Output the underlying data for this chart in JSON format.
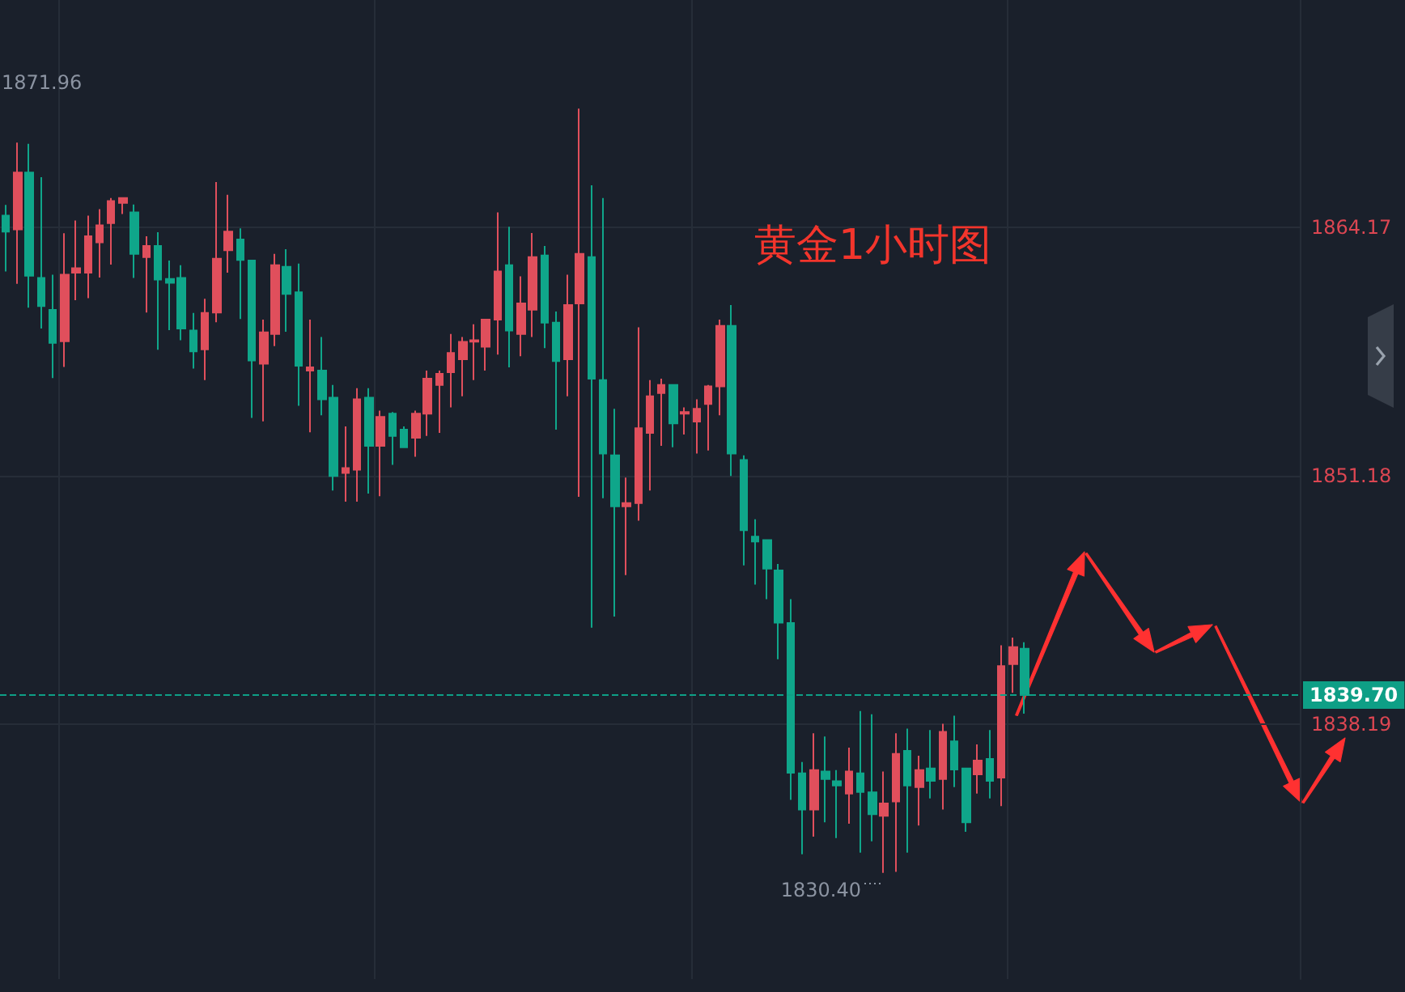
{
  "chart_data": {
    "type": "candlestick",
    "title": "黄金1小时图",
    "categories": [
      null,
      null,
      null,
      null,
      null,
      null,
      null,
      null,
      null,
      null,
      null,
      null,
      null,
      null,
      null,
      null,
      null,
      null,
      null,
      null,
      null,
      null,
      null,
      null,
      null,
      null,
      null,
      null,
      null,
      null,
      null,
      null,
      null,
      null,
      null,
      null,
      null,
      null,
      null,
      null,
      null,
      null,
      null,
      null,
      null,
      null,
      null,
      null,
      null,
      null,
      null,
      null,
      null,
      null,
      null,
      null,
      null,
      null,
      null,
      null,
      null,
      null,
      null,
      null,
      null,
      null,
      null,
      null,
      null,
      null,
      null,
      null,
      null,
      null,
      null,
      null,
      null,
      null,
      null,
      null,
      null,
      null,
      null,
      null,
      null,
      null,
      null,
      null,
      null,
      null,
      null,
      null,
      null,
      null,
      null,
      null,
      null,
      null,
      null,
      null,
      null,
      null,
      null,
      null,
      null,
      null,
      null,
      null,
      null,
      null,
      null
    ],
    "ohlc": [
      [
        1864.77,
        1865.33,
        1861.85,
        1863.94
      ],
      [
        1864.05,
        1868.59,
        1861.21,
        1867.03
      ],
      [
        1867.03,
        1868.53,
        1859.96,
        1861.63
      ],
      [
        1861.52,
        1866.78,
        1858.87,
        1860.04
      ],
      [
        1859.84,
        1861.68,
        1856.28,
        1858.12
      ],
      [
        1858.2,
        1863.85,
        1856.86,
        1861.68
      ],
      [
        1861.79,
        1864.52,
        1860.35,
        1862.02
      ],
      [
        1861.79,
        1864.77,
        1860.46,
        1863.69
      ],
      [
        1863.38,
        1865.11,
        1861.54,
        1864.27
      ],
      [
        1864.38,
        1865.69,
        1862.21,
        1865.53
      ],
      [
        1865.44,
        1865.69,
        1864.86,
        1865.69
      ],
      [
        1864.94,
        1865.36,
        1861.52,
        1862.77
      ],
      [
        1862.6,
        1863.69,
        1859.71,
        1863.19
      ],
      [
        1863.19,
        1863.91,
        1857.76,
        1861.43
      ],
      [
        1861.46,
        1862.43,
        1858.79,
        1861.26
      ],
      [
        1861.52,
        1862.18,
        1858.26,
        1858.87
      ],
      [
        1858.76,
        1859.68,
        1856.78,
        1857.67
      ],
      [
        1857.78,
        1860.43,
        1856.17,
        1859.68
      ],
      [
        1859.71,
        1866.53,
        1859.2,
        1862.52
      ],
      [
        1862.96,
        1865.86,
        1861.79,
        1863.94
      ],
      [
        1863.52,
        1864.11,
        1859.37,
        1862.46
      ],
      [
        1862.43,
        1862.43,
        1854.19,
        1857.2
      ],
      [
        1857.03,
        1859.34,
        1854.02,
        1858.67
      ],
      [
        1858.59,
        1862.77,
        1857.95,
        1862.18
      ],
      [
        1862.1,
        1863.02,
        1858.7,
        1860.68
      ],
      [
        1860.76,
        1862.27,
        1854.83,
        1856.92
      ],
      [
        1856.67,
        1859.34,
        1853.44,
        1856.84
      ],
      [
        1856.67,
        1858.43,
        1854.33,
        1855.17
      ],
      [
        1855.25,
        1855.92,
        1850.4,
        1851.16
      ],
      [
        1851.32,
        1853.75,
        1849.82,
        1851.57
      ],
      [
        1851.49,
        1855.75,
        1849.82,
        1855.17
      ],
      [
        1855.25,
        1855.75,
        1850.24,
        1852.74
      ],
      [
        1852.74,
        1854.58,
        1850.1,
        1854.25
      ],
      [
        1854.42,
        1854.5,
        1851.74,
        1853.25
      ],
      [
        1853.58,
        1853.75,
        1852.66,
        1852.66
      ],
      [
        1853.16,
        1854.58,
        1852.16,
        1854.42
      ],
      [
        1854.42,
        1856.67,
        1853.25,
        1856.25
      ],
      [
        1855.92,
        1856.67,
        1853.41,
        1856.5
      ],
      [
        1856.59,
        1858.59,
        1854.75,
        1857.59
      ],
      [
        1857.26,
        1858.43,
        1855.33,
        1858.17
      ],
      [
        1858.18,
        1859.09,
        1856.17,
        1858.26
      ],
      [
        1857.92,
        1859.34,
        1856.67,
        1859.34
      ],
      [
        1859.34,
        1864.94,
        1857.51,
        1861.85
      ],
      [
        1862.18,
        1864.19,
        1856.84,
        1858.76
      ],
      [
        1858.59,
        1861.6,
        1857.42,
        1860.18
      ],
      [
        1859.85,
        1863.86,
        1858.43,
        1862.6
      ],
      [
        1862.69,
        1863.19,
        1857.84,
        1859.18
      ],
      [
        1859.18,
        1859.76,
        1853.58,
        1857.17
      ],
      [
        1857.26,
        1861.68,
        1855.33,
        1860.1
      ],
      [
        1860.18,
        1870.37,
        1850.07,
        1862.77
      ],
      [
        1862.6,
        1866.36,
        1843.22,
        1856.25
      ],
      [
        1856.17,
        1865.69,
        1849.99,
        1852.33
      ],
      [
        1852.24,
        1854.67,
        1843.81,
        1849.57
      ],
      [
        1849.57,
        1851.07,
        1845.98,
        1849.74
      ],
      [
        1849.74,
        1858.93,
        1848.82,
        1853.66
      ],
      [
        1853.41,
        1856.17,
        1850.4,
        1855.33
      ],
      [
        1855.5,
        1856.25,
        1852.74,
        1855.92
      ],
      [
        1855.92,
        1855.92,
        1852.66,
        1853.91
      ],
      [
        1854.42,
        1854.75,
        1853.33,
        1854.5
      ],
      [
        1854.0,
        1855.17,
        1852.33,
        1854.67
      ],
      [
        1854.92,
        1855.92,
        1852.49,
        1855.84
      ],
      [
        1855.84,
        1859.34,
        1854.33,
        1859.01
      ],
      [
        1859.01,
        1860.1,
        1851.16,
        1852.33
      ],
      [
        1851.99,
        1852.24,
        1846.48,
        1848.32
      ],
      [
        1847.98,
        1848.9,
        1845.48,
        1847.73
      ],
      [
        1847.81,
        1847.81,
        1844.72,
        1846.31
      ],
      [
        1846.22,
        1846.56,
        1841.57,
        1843.49
      ],
      [
        1843.47,
        1844.72,
        1834.22,
        1835.64
      ],
      [
        1835.61,
        1836.2,
        1831.38,
        1833.72
      ],
      [
        1833.72,
        1837.7,
        1832.3,
        1835.78
      ],
      [
        1835.7,
        1837.53,
        1833.05,
        1835.31
      ],
      [
        1835.2,
        1835.78,
        1832.22,
        1834.97
      ],
      [
        1834.55,
        1836.95,
        1832.97,
        1835.7
      ],
      [
        1835.61,
        1838.87,
        1831.46,
        1834.64
      ],
      [
        1834.61,
        1838.7,
        1832.05,
        1833.47
      ],
      [
        1833.39,
        1835.7,
        1830.4,
        1834.03
      ],
      [
        1834.14,
        1837.7,
        1830.46,
        1836.62
      ],
      [
        1836.78,
        1837.95,
        1831.46,
        1834.97
      ],
      [
        1834.89,
        1836.53,
        1832.88,
        1835.78
      ],
      [
        1835.86,
        1837.87,
        1834.3,
        1835.22
      ],
      [
        1835.31,
        1838.2,
        1833.72,
        1837.78
      ],
      [
        1837.28,
        1838.62,
        1834.89,
        1835.81
      ],
      [
        1835.86,
        1835.86,
        1832.55,
        1833.05
      ],
      [
        1835.56,
        1837.12,
        1834.55,
        1836.28
      ],
      [
        1836.36,
        1837.87,
        1834.3,
        1835.22
      ],
      [
        1835.39,
        1842.3,
        1833.89,
        1841.21
      ],
      [
        1841.32,
        1842.71,
        1839.82,
        1842.21
      ],
      [
        1842.13,
        1842.46,
        1838.73,
        1839.7
      ],
      null,
      null,
      null,
      null,
      null,
      null,
      null,
      null,
      null,
      null,
      null,
      null,
      null,
      null,
      null,
      null,
      null,
      null,
      null,
      null,
      null,
      null,
      null
    ],
    "colors": [
      "#0fa68a",
      "#e04f5c",
      "#0fa68a",
      "#0fa68a",
      "#0fa68a",
      "#e04f5c",
      "#e04f5c",
      "#e04f5c",
      "#e04f5c",
      "#e04f5c",
      "#e04f5c",
      "#0fa68a",
      "#e04f5c",
      "#0fa68a",
      "#0fa68a",
      "#0fa68a",
      "#0fa68a",
      "#e04f5c",
      "#e04f5c",
      "#e04f5c",
      "#0fa68a",
      "#0fa68a",
      "#e04f5c",
      "#e04f5c",
      "#0fa68a",
      "#0fa68a",
      "#e04f5c",
      "#0fa68a",
      "#0fa68a",
      "#e04f5c",
      "#e04f5c",
      "#0fa68a",
      "#e04f5c",
      "#0fa68a",
      "#0fa68a",
      "#e04f5c",
      "#e04f5c",
      "#e04f5c",
      "#e04f5c",
      "#e04f5c",
      "#e04f5c",
      "#e04f5c",
      "#e04f5c",
      "#0fa68a",
      "#e04f5c",
      "#e04f5c",
      "#0fa68a",
      "#0fa68a",
      "#e04f5c",
      "#e04f5c",
      "#0fa68a",
      "#0fa68a",
      "#0fa68a",
      "#e04f5c",
      "#e04f5c",
      "#e04f5c",
      "#e04f5c",
      "#0fa68a",
      "#e04f5c",
      "#e04f5c",
      "#e04f5c",
      "#e04f5c",
      "#0fa68a",
      "#0fa68a",
      "#0fa68a",
      "#0fa68a",
      "#0fa68a",
      "#0fa68a",
      "#0fa68a",
      "#e04f5c",
      "#0fa68a",
      "#0fa68a",
      "#e04f5c",
      "#0fa68a",
      "#0fa68a",
      "#e04f5c",
      "#e04f5c",
      "#0fa68a",
      "#e04f5c",
      "#0fa68a",
      "#e04f5c",
      "#0fa68a",
      "#0fa68a",
      "#e04f5c",
      "#0fa68a",
      "#e04f5c",
      "#e04f5c",
      "#0fa68a",
      null,
      null,
      null,
      null,
      null,
      null,
      null,
      null,
      null,
      null,
      null,
      null,
      null,
      null,
      null,
      null,
      null,
      null,
      null,
      null,
      null,
      null,
      null
    ],
    "ylim": [
      1824.85,
      1876.05
    ],
    "yticks": [
      1838.19,
      1851.18,
      1864.17
    ],
    "grid": true,
    "ref_lines": [
      {
        "axis": "y",
        "value": 1839.7,
        "label": "1839.70",
        "color": "#0e9f86",
        "line_style": "dashed"
      }
    ],
    "annotations": [
      "1871.96",
      "1830.40"
    ]
  }
}
